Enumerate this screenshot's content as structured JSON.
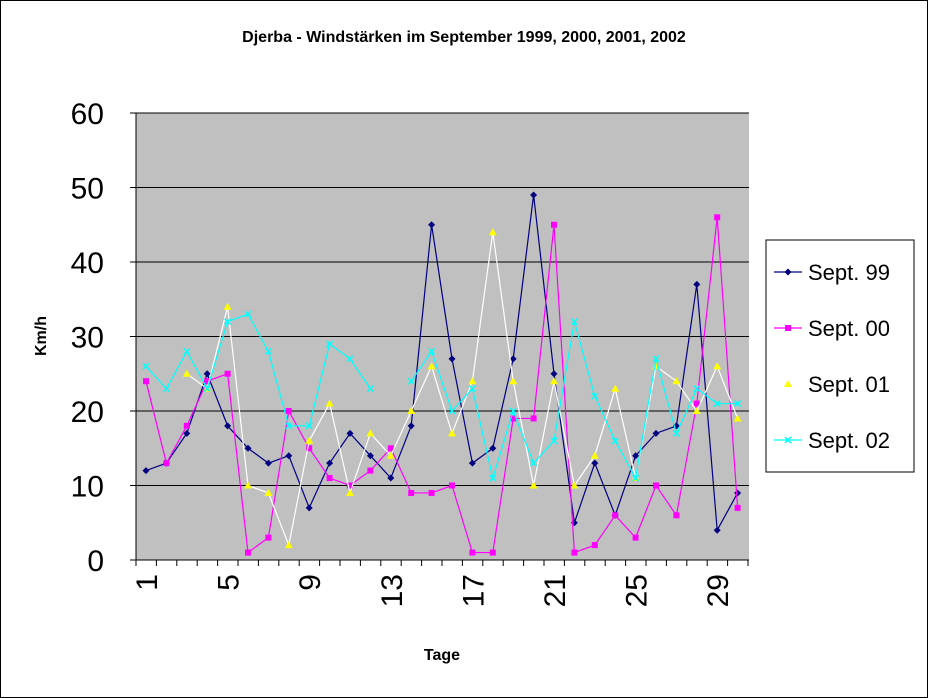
{
  "chart_data": {
    "type": "line",
    "title": "Djerba - Windstärken im September 1999, 2000, 2001, 2002",
    "xlabel": "Tage",
    "ylabel": "Km/h",
    "ylim": [
      0,
      60
    ],
    "yticks": [
      0,
      10,
      20,
      30,
      40,
      50,
      60
    ],
    "x": [
      1,
      2,
      3,
      4,
      5,
      6,
      7,
      8,
      9,
      10,
      11,
      12,
      13,
      14,
      15,
      16,
      17,
      18,
      19,
      20,
      21,
      22,
      23,
      24,
      25,
      26,
      27,
      28,
      29,
      30
    ],
    "xtick_labels": [
      "1",
      "5",
      "9",
      "13",
      "17",
      "21",
      "25",
      "29"
    ],
    "xtick_values": [
      1,
      5,
      9,
      13,
      17,
      21,
      25,
      29
    ],
    "grid": true,
    "legend_position": "right",
    "plot_background": "#c0c0c0",
    "series": [
      {
        "name": "Sept. 99",
        "color": "#000080",
        "line_color": "#000080",
        "marker": "diamond",
        "values": [
          12,
          13,
          17,
          25,
          18,
          15,
          13,
          14,
          7,
          13,
          17,
          14,
          11,
          18,
          45,
          27,
          13,
          15,
          27,
          49,
          25,
          5,
          13,
          6,
          14,
          17,
          18,
          37,
          4,
          9
        ]
      },
      {
        "name": "Sept. 00",
        "color": "#ff00ff",
        "line_color": "#ff00ff",
        "marker": "square",
        "values": [
          24,
          13,
          18,
          24,
          25,
          1,
          3,
          20,
          15,
          11,
          10,
          12,
          15,
          9,
          9,
          10,
          1,
          1,
          19,
          19,
          45,
          1,
          2,
          6,
          3,
          10,
          6,
          21,
          46,
          7
        ]
      },
      {
        "name": "Sept. 01",
        "color": "#ffff00",
        "line_color": "#ffffff",
        "marker": "triangle",
        "values": [
          null,
          null,
          25,
          23,
          34,
          10,
          9,
          2,
          16,
          21,
          9,
          17,
          14,
          20,
          26,
          17,
          24,
          44,
          24,
          10,
          24,
          10,
          14,
          23,
          11,
          26,
          24,
          20,
          26,
          19
        ]
      },
      {
        "name": "Sept. 02",
        "color": "#00ffff",
        "line_color": "#00ffff",
        "marker": "x",
        "values": [
          26,
          23,
          28,
          23,
          32,
          33,
          28,
          18,
          18,
          29,
          27,
          23,
          null,
          24,
          28,
          20,
          23,
          11,
          20,
          13,
          16,
          32,
          22,
          16,
          11,
          27,
          17,
          23,
          21,
          21
        ]
      }
    ]
  }
}
